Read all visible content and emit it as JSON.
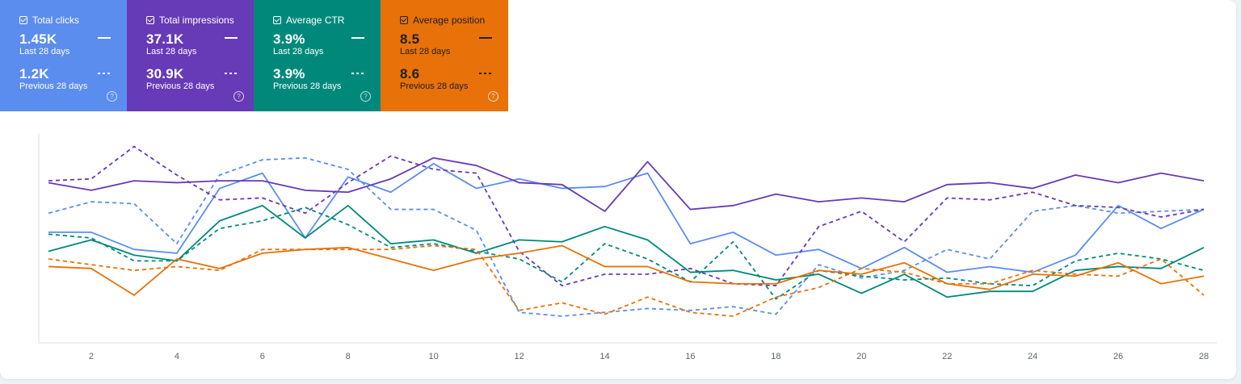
{
  "cards": [
    {
      "label": "Total clicks",
      "current": "1.45K",
      "current_period": "Last 28 days",
      "previous": "1.2K",
      "previous_period": "Previous 28 days",
      "color": "#5b8def"
    },
    {
      "label": "Total impressions",
      "current": "37.1K",
      "current_period": "Last 28 days",
      "previous": "30.9K",
      "previous_period": "Previous 28 days",
      "color": "#673ab7"
    },
    {
      "label": "Average CTR",
      "current": "3.9%",
      "current_period": "Last 28 days",
      "previous": "3.9%",
      "previous_period": "Previous 28 days",
      "color": "#00897b"
    },
    {
      "label": "Average position",
      "current": "8.5",
      "current_period": "Last 28 days",
      "previous": "8.6",
      "previous_period": "Previous 28 days",
      "color": "#e8710a"
    }
  ],
  "chart_data": {
    "type": "line",
    "x": [
      1,
      2,
      3,
      4,
      5,
      6,
      7,
      8,
      9,
      10,
      11,
      12,
      13,
      14,
      15,
      16,
      17,
      18,
      19,
      20,
      21,
      22,
      23,
      24,
      25,
      26,
      27,
      28
    ],
    "xticks": [
      "2",
      "4",
      "6",
      "8",
      "10",
      "12",
      "14",
      "16",
      "18",
      "20",
      "22",
      "24",
      "26",
      "28"
    ],
    "grid": false,
    "series": [
      {
        "color": "#5b8def",
        "dashed": false,
        "values": [
          58,
          58,
          49,
          47,
          81,
          89,
          55,
          87,
          79,
          94,
          81,
          86,
          81,
          82,
          89,
          52,
          58,
          46,
          49,
          39,
          50,
          37,
          40,
          37,
          46,
          72,
          60,
          70
        ]
      },
      {
        "color": "#5b8def",
        "dashed": true,
        "values": [
          68,
          74,
          73,
          52,
          88,
          96,
          97,
          91,
          70,
          70,
          59,
          16,
          14,
          16,
          18,
          17,
          19,
          15,
          41,
          34,
          38,
          49,
          44,
          69,
          72,
          68,
          69,
          70
        ]
      },
      {
        "color": "#673ab7",
        "dashed": false,
        "values": [
          84,
          80,
          85,
          84,
          85,
          85,
          80,
          79,
          86,
          97,
          93,
          84,
          83,
          69,
          95,
          70,
          72,
          78,
          74,
          76,
          74,
          83,
          84,
          81,
          88,
          84,
          89,
          85
        ]
      },
      {
        "color": "#673ab7",
        "dashed": true,
        "values": [
          85,
          86,
          103,
          88,
          75,
          76,
          68,
          84,
          98,
          91,
          89,
          48,
          30,
          36,
          36,
          39,
          31,
          30,
          61,
          69,
          53,
          76,
          75,
          79,
          72,
          71,
          66,
          70
        ]
      },
      {
        "color": "#00897b",
        "dashed": false,
        "values": [
          48,
          54,
          46,
          43,
          64,
          72,
          55,
          72,
          52,
          54,
          47,
          54,
          53,
          61,
          54,
          37,
          38,
          33,
          36,
          26,
          36,
          24,
          27,
          27,
          38,
          40,
          39,
          50
        ]
      },
      {
        "color": "#00897b",
        "dashed": true,
        "values": [
          57,
          55,
          43,
          43,
          60,
          64,
          71,
          62,
          50,
          52,
          48,
          44,
          32,
          52,
          44,
          32,
          53,
          23,
          38,
          35,
          33,
          34,
          31,
          30,
          43,
          47,
          44,
          38
        ]
      },
      {
        "color": "#e8710a",
        "dashed": false,
        "values": [
          40,
          39,
          25,
          44,
          39,
          47,
          49,
          50,
          44,
          38,
          44,
          47,
          51,
          40,
          40,
          32,
          31,
          31,
          38,
          36,
          42,
          31,
          28,
          36,
          35,
          42,
          31,
          35
        ]
      },
      {
        "color": "#e8710a",
        "dashed": true,
        "values": [
          44,
          41,
          38,
          40,
          38,
          49,
          49,
          49,
          49,
          51,
          49,
          17,
          21,
          15,
          24,
          16,
          14,
          24,
          29,
          39,
          37,
          31,
          31,
          38,
          36,
          35,
          44,
          25
        ]
      }
    ]
  }
}
